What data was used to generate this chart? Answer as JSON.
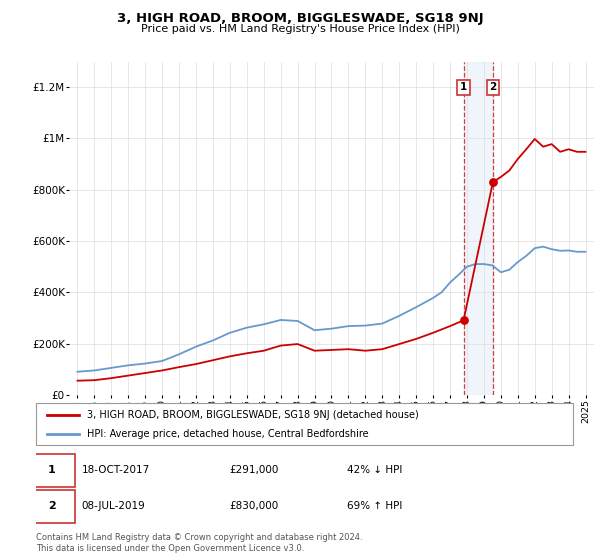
{
  "title": "3, HIGH ROAD, BROOM, BIGGLESWADE, SG18 9NJ",
  "subtitle": "Price paid vs. HM Land Registry's House Price Index (HPI)",
  "xlim": [
    1994.5,
    2025.5
  ],
  "ylim": [
    0,
    1300000
  ],
  "yticks": [
    0,
    200000,
    400000,
    600000,
    800000,
    1000000,
    1200000
  ],
  "ytick_labels": [
    "£0",
    "£200K",
    "£400K",
    "£600K",
    "£800K",
    "£1M",
    "£1.2M"
  ],
  "xticks": [
    1995,
    1996,
    1997,
    1998,
    1999,
    2000,
    2001,
    2002,
    2003,
    2004,
    2005,
    2006,
    2007,
    2008,
    2009,
    2010,
    2011,
    2012,
    2013,
    2014,
    2015,
    2016,
    2017,
    2018,
    2019,
    2020,
    2021,
    2022,
    2023,
    2024,
    2025
  ],
  "red_color": "#cc0000",
  "blue_color": "#6699cc",
  "sale1_date": 2017.8,
  "sale1_price": 291000,
  "sale2_date": 2019.53,
  "sale2_price": 830000,
  "highlight_start": 2017.8,
  "highlight_end": 2019.53,
  "legend_label_red": "3, HIGH ROAD, BROOM, BIGGLESWADE, SG18 9NJ (detached house)",
  "legend_label_blue": "HPI: Average price, detached house, Central Bedfordshire",
  "annotation1_date": "18-OCT-2017",
  "annotation1_price": "£291,000",
  "annotation1_hpi": "42% ↓ HPI",
  "annotation2_date": "08-JUL-2019",
  "annotation2_price": "£830,000",
  "annotation2_hpi": "69% ↑ HPI",
  "footer": "Contains HM Land Registry data © Crown copyright and database right 2024.\nThis data is licensed under the Open Government Licence v3.0.",
  "years_hpi": [
    1995,
    1996,
    1997,
    1998,
    1999,
    2000,
    2001,
    2002,
    2003,
    2004,
    2005,
    2006,
    2007,
    2008,
    2009,
    2010,
    2011,
    2012,
    2013,
    2014,
    2015,
    2016,
    2016.5,
    2017,
    2017.5,
    2018,
    2018.5,
    2019,
    2019.5,
    2020,
    2020.5,
    2021,
    2021.5,
    2022,
    2022.5,
    2023,
    2023.5,
    2024,
    2024.5,
    2025
  ],
  "vals_hpi": [
    90000,
    95000,
    105000,
    115000,
    122000,
    132000,
    158000,
    188000,
    212000,
    242000,
    262000,
    275000,
    292000,
    288000,
    252000,
    258000,
    268000,
    270000,
    278000,
    308000,
    342000,
    378000,
    400000,
    438000,
    468000,
    500000,
    510000,
    510000,
    505000,
    478000,
    488000,
    518000,
    542000,
    572000,
    578000,
    568000,
    562000,
    563000,
    558000,
    558000
  ],
  "years_red": [
    1995,
    1996,
    1997,
    1998,
    1999,
    2000,
    2001,
    2002,
    2003,
    2004,
    2005,
    2006,
    2007,
    2008,
    2009,
    2010,
    2011,
    2012,
    2013,
    2014,
    2015,
    2016,
    2017,
    2017.8,
    2019.53,
    2020,
    2020.5,
    2021,
    2021.5,
    2022,
    2022.5,
    2023,
    2023.5,
    2024,
    2024.5,
    2025
  ],
  "vals_red": [
    55000,
    57000,
    65000,
    75000,
    85000,
    95000,
    108000,
    120000,
    135000,
    150000,
    162000,
    172000,
    192000,
    198000,
    172000,
    175000,
    178000,
    172000,
    178000,
    198000,
    218000,
    242000,
    268000,
    291000,
    830000,
    850000,
    875000,
    920000,
    958000,
    998000,
    968000,
    978000,
    948000,
    958000,
    948000,
    948000
  ]
}
